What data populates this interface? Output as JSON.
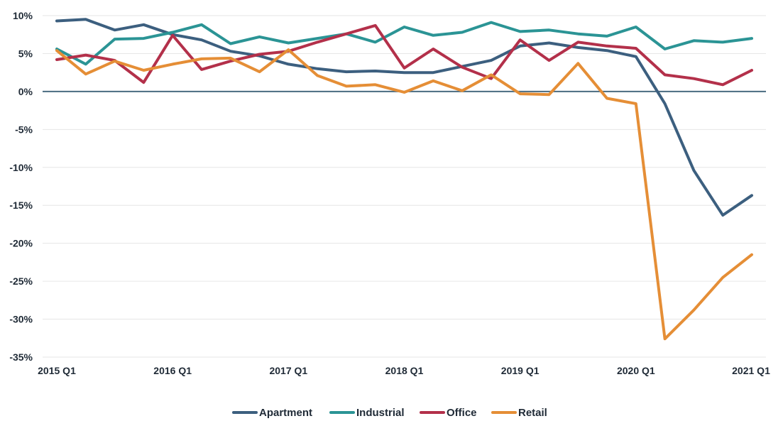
{
  "chart_data": {
    "type": "line",
    "title": "",
    "xlabel": "",
    "ylabel": "",
    "ylim": [
      -35,
      10
    ],
    "yticks": [
      10,
      5,
      0,
      -5,
      -10,
      -15,
      -20,
      -25,
      -30,
      -35
    ],
    "ytick_suffix": "%",
    "x_tick_labels": [
      {
        "index": 0,
        "label": "2015 Q1"
      },
      {
        "index": 4,
        "label": "2016 Q1"
      },
      {
        "index": 8,
        "label": "2017 Q1"
      },
      {
        "index": 12,
        "label": "2018 Q1"
      },
      {
        "index": 16,
        "label": "2019 Q1"
      },
      {
        "index": 20,
        "label": "2020 Q1"
      },
      {
        "index": 24,
        "label": "2021 Q1"
      }
    ],
    "categories": [
      "2015 Q1",
      "2015 Q2",
      "2015 Q3",
      "2015 Q4",
      "2016 Q1",
      "2016 Q2",
      "2016 Q3",
      "2016 Q4",
      "2017 Q1",
      "2017 Q2",
      "2017 Q3",
      "2017 Q4",
      "2018 Q1",
      "2018 Q2",
      "2018 Q3",
      "2018 Q4",
      "2019 Q1",
      "2019 Q2",
      "2019 Q3",
      "2019 Q4",
      "2020 Q1",
      "2020 Q2",
      "2020 Q3",
      "2020 Q4",
      "2021 Q1"
    ],
    "grid": true,
    "legend_position": "bottom",
    "series": [
      {
        "name": "Apartment",
        "color": "#3c5f7f",
        "values": [
          9.3,
          9.5,
          8.1,
          8.8,
          7.5,
          6.8,
          5.3,
          4.7,
          3.6,
          3.0,
          2.6,
          2.7,
          2.5,
          2.5,
          3.3,
          4.1,
          6.0,
          6.4,
          5.8,
          5.4,
          4.6,
          -1.6,
          -10.4,
          -16.3,
          -13.7
        ]
      },
      {
        "name": "Industrial",
        "color": "#2b9495",
        "values": [
          5.6,
          3.6,
          6.9,
          7.0,
          7.8,
          8.8,
          6.3,
          7.2,
          6.4,
          7.0,
          7.6,
          6.5,
          8.5,
          7.4,
          7.8,
          9.1,
          7.9,
          8.1,
          7.6,
          7.3,
          8.5,
          5.6,
          6.7,
          6.5,
          7.0
        ]
      },
      {
        "name": "Office",
        "color": "#b3304a",
        "values": [
          4.2,
          4.8,
          4.1,
          1.2,
          7.4,
          2.9,
          4.0,
          4.9,
          5.3,
          6.5,
          7.6,
          8.7,
          3.1,
          5.6,
          3.2,
          1.7,
          6.8,
          4.1,
          6.5,
          6.0,
          5.7,
          2.2,
          1.7,
          0.9,
          2.8
        ]
      },
      {
        "name": "Retail",
        "color": "#e58e36",
        "values": [
          5.4,
          2.3,
          4.0,
          2.8,
          3.6,
          4.3,
          4.4,
          2.6,
          5.5,
          2.1,
          0.7,
          0.9,
          -0.1,
          1.4,
          0.1,
          2.2,
          -0.3,
          -0.4,
          3.7,
          -0.9,
          -1.6,
          -32.6,
          -28.8,
          -24.5,
          -21.5
        ]
      }
    ]
  }
}
